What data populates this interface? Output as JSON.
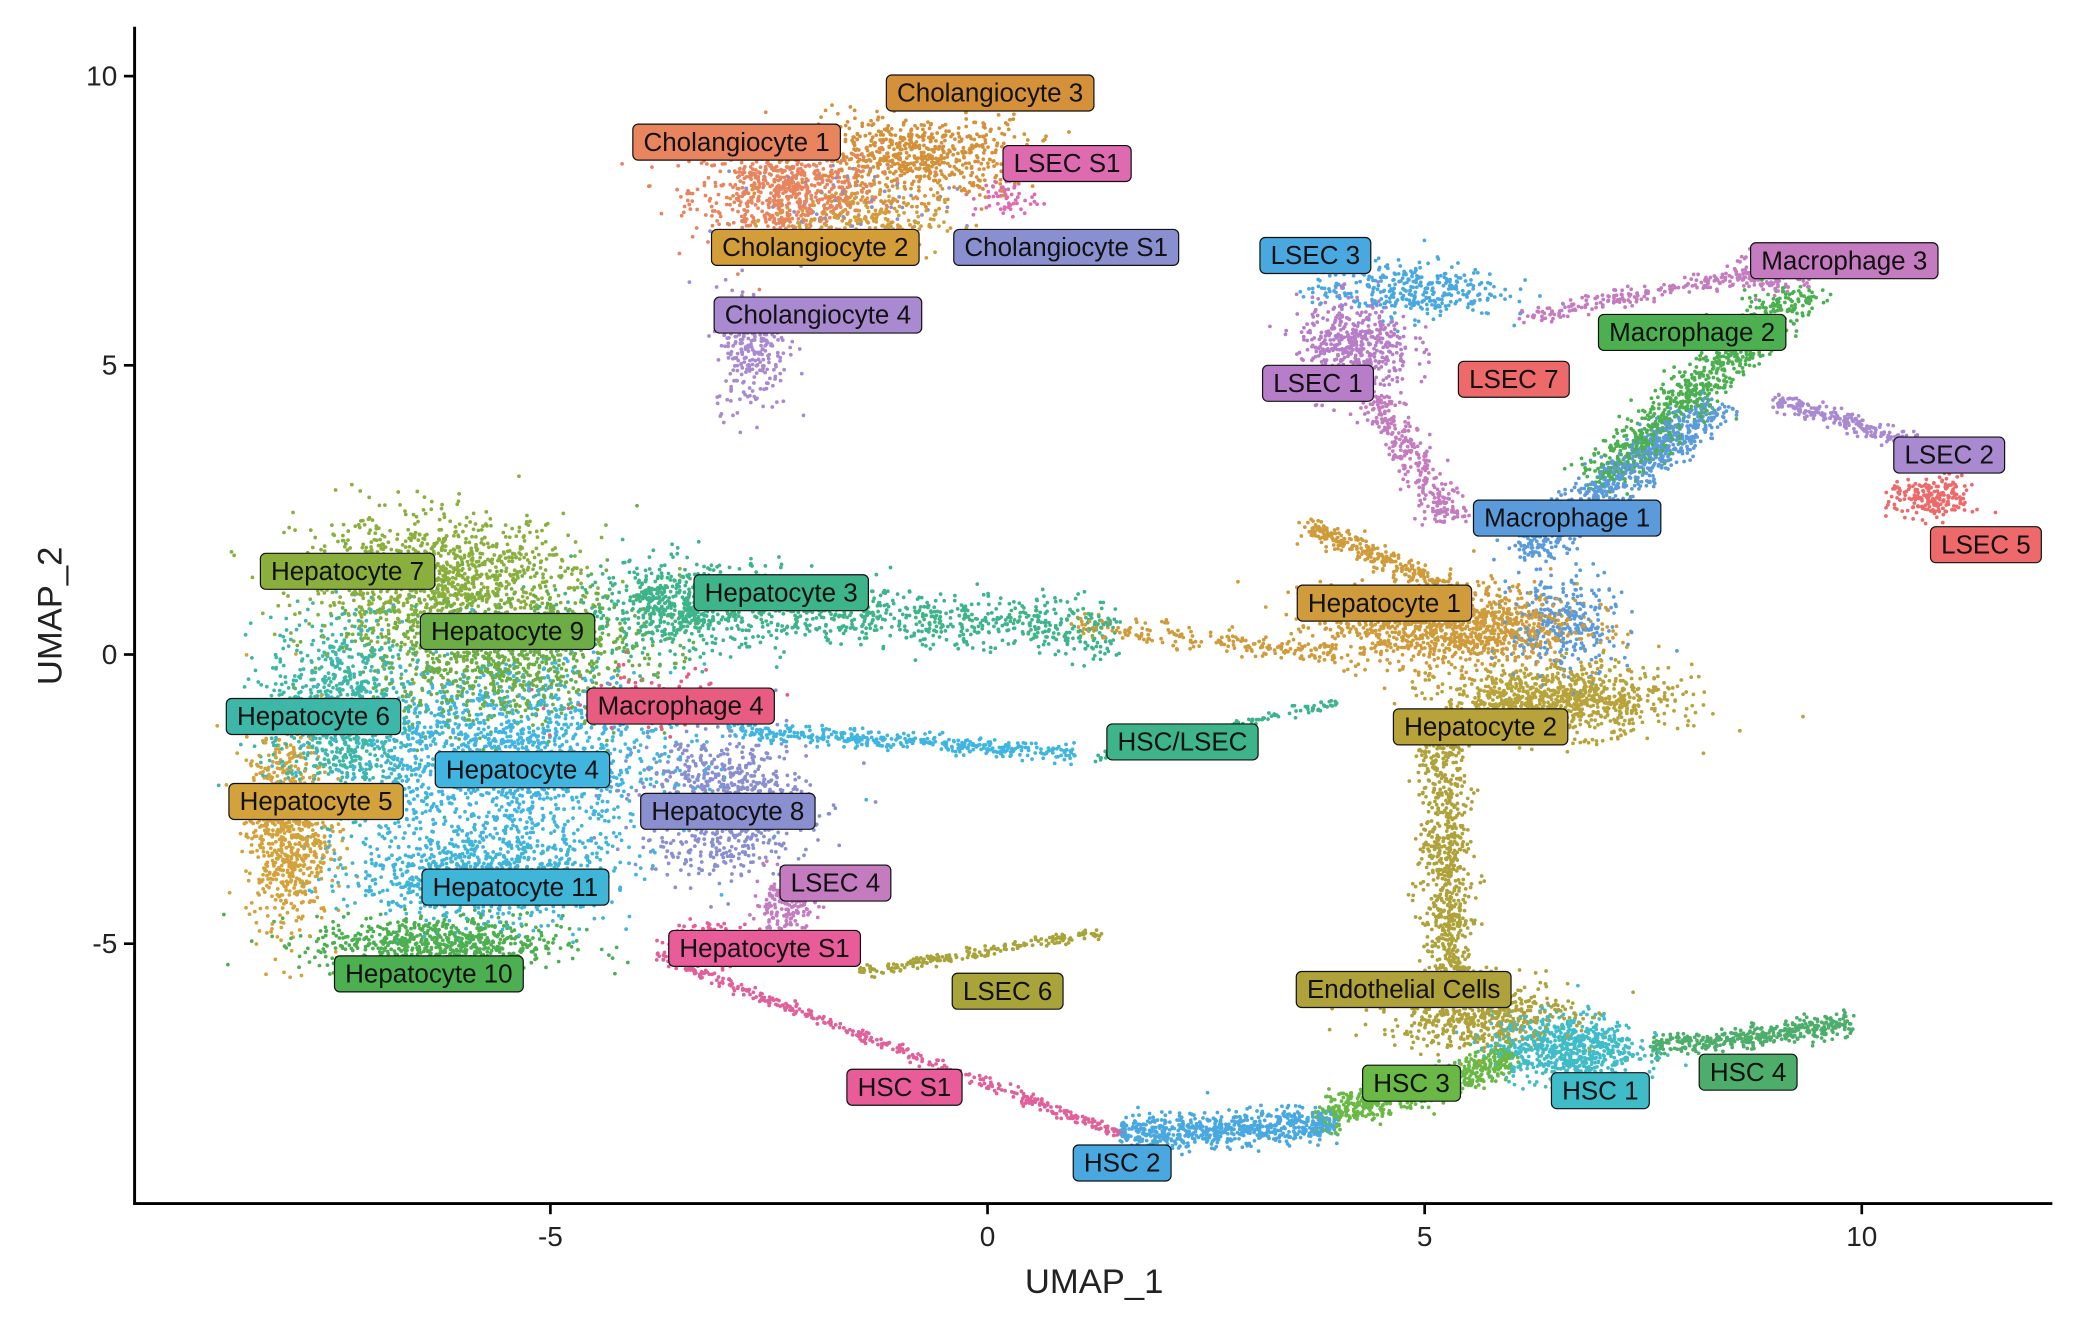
{
  "chart_data": {
    "type": "scatter",
    "xlabel": "UMAP_1",
    "ylabel": "UMAP_2",
    "xlim": [
      -9.76,
      12.18
    ],
    "ylim": [
      -9.49,
      10.6
    ],
    "xticks": [
      -5,
      0,
      5,
      10
    ],
    "yticks": [
      -5,
      0,
      5,
      10
    ],
    "grid": false,
    "legend": "none (in-plot cluster labels)",
    "labels": [
      {
        "text": "Cholangiocyte 3",
        "x": 0.03,
        "y": 9.72,
        "color": "#D4913A"
      },
      {
        "text": "Cholangiocyte 1",
        "x": -2.87,
        "y": 8.87,
        "color": "#E8845E"
      },
      {
        "text": "LSEC S1",
        "x": 0.91,
        "y": 8.5,
        "color": "#DE6AAF"
      },
      {
        "text": "Cholangiocyte 2",
        "x": -1.97,
        "y": 7.05,
        "color": "#D39E3A"
      },
      {
        "text": "Cholangiocyte S1",
        "x": 0.9,
        "y": 7.05,
        "color": "#8A8FD0"
      },
      {
        "text": "Cholangiocyte 4",
        "x": -1.94,
        "y": 5.88,
        "color": "#A98AD0"
      },
      {
        "text": "LSEC 3",
        "x": 3.75,
        "y": 6.91,
        "color": "#4AA8E0"
      },
      {
        "text": "Macrophage 3",
        "x": 9.8,
        "y": 6.82,
        "color": "#C47BC0"
      },
      {
        "text": "Macrophage 2",
        "x": 8.06,
        "y": 5.58,
        "color": "#4CB050"
      },
      {
        "text": "LSEC 1",
        "x": 3.78,
        "y": 4.7,
        "color": "#B87DC8"
      },
      {
        "text": "LSEC 7",
        "x": 6.02,
        "y": 4.77,
        "color": "#EE6A6A"
      },
      {
        "text": "LSEC 2",
        "x": 11.0,
        "y": 3.46,
        "color": "#A98AD0"
      },
      {
        "text": "Macrophage 1",
        "x": 6.63,
        "y": 2.37,
        "color": "#5B9BDB"
      },
      {
        "text": "LSEC 5",
        "x": 11.42,
        "y": 1.91,
        "color": "#EE6A6A"
      },
      {
        "text": "Hepatocyte 7",
        "x": -7.32,
        "y": 1.45,
        "color": "#8BAF3C"
      },
      {
        "text": "Hepatocyte 3",
        "x": -2.36,
        "y": 1.08,
        "color": "#3DB48A"
      },
      {
        "text": "Hepatocyte 1",
        "x": 4.54,
        "y": 0.9,
        "color": "#D09B3A"
      },
      {
        "text": "Hepatocyte 9",
        "x": -5.49,
        "y": 0.41,
        "color": "#6CAE45"
      },
      {
        "text": "Hepatocyte 6",
        "x": -7.71,
        "y": -1.06,
        "color": "#3DB7A8"
      },
      {
        "text": "Macrophage 4",
        "x": -3.51,
        "y": -0.88,
        "color": "#E85C82"
      },
      {
        "text": "Hepatocyte 2",
        "x": 5.64,
        "y": -1.24,
        "color": "#B8A33A"
      },
      {
        "text": "HSC/LSEC",
        "x": 2.23,
        "y": -1.5,
        "color": "#3DB48A"
      },
      {
        "text": "Hepatocyte 4",
        "x": -5.32,
        "y": -1.98,
        "color": "#3FB5E0"
      },
      {
        "text": "Hepatocyte 5",
        "x": -7.68,
        "y": -2.53,
        "color": "#D4A23A"
      },
      {
        "text": "Hepatocyte 8",
        "x": -2.97,
        "y": -2.7,
        "color": "#8A8FD0"
      },
      {
        "text": "LSEC 4",
        "x": -1.74,
        "y": -3.94,
        "color": "#C47BC0"
      },
      {
        "text": "Hepatocyte 11",
        "x": -5.4,
        "y": -4.01,
        "color": "#3FB5D8"
      },
      {
        "text": "Hepatocyte S1",
        "x": -2.55,
        "y": -5.07,
        "color": "#E85C9A"
      },
      {
        "text": "Hepatocyte 10",
        "x": -6.39,
        "y": -5.51,
        "color": "#4CB050"
      },
      {
        "text": "LSEC 6",
        "x": 0.23,
        "y": -5.81,
        "color": "#A8A43A"
      },
      {
        "text": "Endothelial Cells",
        "x": 4.76,
        "y": -5.78,
        "color": "#B0A23A"
      },
      {
        "text": "HSC 3",
        "x": 4.85,
        "y": -7.4,
        "color": "#6AB845"
      },
      {
        "text": "HSC 1",
        "x": 7.01,
        "y": -7.53,
        "color": "#40BCC8"
      },
      {
        "text": "HSC 4",
        "x": 8.7,
        "y": -7.21,
        "color": "#4CAE6A"
      },
      {
        "text": "HSC S1",
        "x": -0.95,
        "y": -7.47,
        "color": "#E85C9A"
      },
      {
        "text": "HSC 2",
        "x": 1.54,
        "y": -8.78,
        "color": "#4AA8E0"
      }
    ],
    "clusters": [
      {
        "c": [
          -2.3,
          8.0
        ],
        "s": [
          0.9,
          0.7
        ],
        "n": 700,
        "color": "#E8845E"
      },
      {
        "c": [
          -0.8,
          8.6
        ],
        "s": [
          1.1,
          0.6
        ],
        "n": 700,
        "color": "#D4913A"
      },
      {
        "c": [
          -1.5,
          7.5
        ],
        "s": [
          0.8,
          0.5
        ],
        "n": 300,
        "color": "#D39E3A"
      },
      {
        "c": [
          -2.7,
          5.3
        ],
        "s": [
          0.35,
          0.9
        ],
        "n": 260,
        "color": "#A98AD0"
      },
      {
        "c": [
          -1.5,
          7.8
        ],
        "s": [
          1.0,
          0.6
        ],
        "n": 60,
        "color": "#8A8FD0"
      },
      {
        "c": [
          0.2,
          7.9
        ],
        "s": [
          0.3,
          0.3
        ],
        "n": 60,
        "color": "#DE6AAF"
      },
      {
        "c": [
          4.8,
          6.3
        ],
        "s": [
          0.9,
          0.4
        ],
        "n": 350,
        "color": "#4AA8E0"
      },
      {
        "c": [
          4.2,
          5.3
        ],
        "s": [
          0.55,
          0.7
        ],
        "n": 500,
        "color": "#B87DC8"
      },
      {
        "from": [
          4.4,
          4.5
        ],
        "to": [
          5.3,
          2.3
        ],
        "w": 0.3,
        "n": 300,
        "color": "#C47BC0"
      },
      {
        "from": [
          6.0,
          5.8
        ],
        "to": [
          9.5,
          6.8
        ],
        "w": 0.15,
        "n": 250,
        "color": "#C47BC0"
      },
      {
        "c": [
          9.0,
          6.6
        ],
        "s": [
          0.4,
          0.3
        ],
        "n": 150,
        "color": "#C47BC0"
      },
      {
        "from": [
          7.0,
          3.0
        ],
        "to": [
          9.3,
          6.3
        ],
        "w": 0.45,
        "n": 900,
        "color": "#4CB050"
      },
      {
        "from": [
          6.2,
          1.8
        ],
        "to": [
          8.3,
          4.3
        ],
        "w": 0.45,
        "n": 800,
        "color": "#5B9BDB"
      },
      {
        "c": [
          6.6,
          0.5
        ],
        "s": [
          0.5,
          0.8
        ],
        "n": 300,
        "color": "#5B9BDB"
      },
      {
        "from": [
          9.0,
          4.4
        ],
        "to": [
          11.0,
          3.5
        ],
        "w": 0.2,
        "n": 250,
        "color": "#A98AD0"
      },
      {
        "c": [
          10.8,
          2.7
        ],
        "s": [
          0.4,
          0.3
        ],
        "n": 200,
        "color": "#EE6A6A"
      },
      {
        "c": [
          5.3,
          0.5
        ],
        "s": [
          1.2,
          0.6
        ],
        "n": 1200,
        "color": "#D09B3A"
      },
      {
        "from": [
          3.7,
          2.2
        ],
        "to": [
          5.5,
          1.0
        ],
        "w": 0.25,
        "n": 300,
        "color": "#D09B3A"
      },
      {
        "c": [
          6.5,
          -0.8
        ],
        "s": [
          1.1,
          0.5
        ],
        "n": 1000,
        "color": "#B8A33A"
      },
      {
        "from": [
          5.2,
          -1.5
        ],
        "to": [
          5.3,
          -5.5
        ],
        "w": 0.3,
        "n": 700,
        "color": "#B0A23A"
      },
      {
        "c": [
          5.6,
          -6.2
        ],
        "s": [
          0.9,
          0.5
        ],
        "n": 600,
        "color": "#B0A23A"
      },
      {
        "from": [
          1.5,
          -8.3
        ],
        "to": [
          4.0,
          -8.1
        ],
        "w": 0.3,
        "n": 700,
        "color": "#4AA8E0"
      },
      {
        "from": [
          3.8,
          -8.0
        ],
        "to": [
          6.0,
          -7.0
        ],
        "w": 0.35,
        "n": 700,
        "color": "#6AB845"
      },
      {
        "c": [
          6.6,
          -6.8
        ],
        "s": [
          0.7,
          0.5
        ],
        "n": 700,
        "color": "#40BCC8"
      },
      {
        "from": [
          7.6,
          -6.8
        ],
        "to": [
          9.9,
          -6.4
        ],
        "w": 0.2,
        "n": 400,
        "color": "#4CAE6A"
      },
      {
        "from": [
          -3.8,
          -5.2
        ],
        "to": [
          1.5,
          -8.3
        ],
        "w": 0.12,
        "n": 400,
        "color": "#E0609A"
      },
      {
        "c": [
          -3.2,
          -5.0
        ],
        "s": [
          0.4,
          0.3
        ],
        "n": 200,
        "color": "#E85C9A"
      },
      {
        "c": [
          -2.3,
          -4.3
        ],
        "s": [
          0.3,
          0.4
        ],
        "n": 200,
        "color": "#C47BC0"
      },
      {
        "from": [
          -1.5,
          -5.5
        ],
        "to": [
          1.3,
          -4.8
        ],
        "w": 0.1,
        "n": 200,
        "color": "#A8A43A"
      },
      {
        "from": [
          1.2,
          -1.8
        ],
        "to": [
          4.0,
          -0.8
        ],
        "w": 0.12,
        "n": 150,
        "color": "#3DB48A"
      },
      {
        "from": [
          -4.0,
          1.0
        ],
        "to": [
          1.5,
          0.4
        ],
        "w": 0.5,
        "n": 900,
        "color": "#3DB48A"
      },
      {
        "from": [
          1.0,
          0.5
        ],
        "to": [
          4.0,
          0.0
        ],
        "w": 0.2,
        "n": 200,
        "color": "#D09B3A"
      },
      {
        "from": [
          -3.0,
          -1.3
        ],
        "to": [
          1.0,
          -1.7
        ],
        "w": 0.15,
        "n": 400,
        "color": "#3FB5E0"
      },
      {
        "c": [
          -6.3,
          1.3
        ],
        "s": [
          1.3,
          0.9
        ],
        "n": 1200,
        "color": "#8BAF3C"
      },
      {
        "c": [
          -5.5,
          0.0
        ],
        "s": [
          1.3,
          1.0
        ],
        "n": 1100,
        "color": "#6CAE45"
      },
      {
        "c": [
          -7.4,
          -1.0
        ],
        "s": [
          0.7,
          1.4
        ],
        "n": 900,
        "color": "#3DB7A8"
      },
      {
        "c": [
          -8.0,
          -3.0
        ],
        "s": [
          0.4,
          1.4
        ],
        "n": 800,
        "color": "#D4A23A"
      },
      {
        "c": [
          -5.5,
          -1.8
        ],
        "s": [
          1.6,
          1.3
        ],
        "n": 1600,
        "color": "#3FB5E0"
      },
      {
        "c": [
          -3.5,
          0.8
        ],
        "s": [
          1.0,
          0.7
        ],
        "n": 500,
        "color": "#3DB48A"
      },
      {
        "c": [
          -4.0,
          -0.8
        ],
        "s": [
          0.8,
          0.5
        ],
        "n": 80,
        "color": "#E85C82"
      },
      {
        "c": [
          -3.0,
          -2.6
        ],
        "s": [
          0.8,
          1.0
        ],
        "n": 800,
        "color": "#8A8FD0"
      },
      {
        "c": [
          -5.8,
          -3.8
        ],
        "s": [
          1.2,
          0.7
        ],
        "n": 900,
        "color": "#3FB5D8"
      },
      {
        "c": [
          -6.3,
          -5.0
        ],
        "s": [
          1.2,
          0.4
        ],
        "n": 700,
        "color": "#4CB050"
      }
    ]
  }
}
